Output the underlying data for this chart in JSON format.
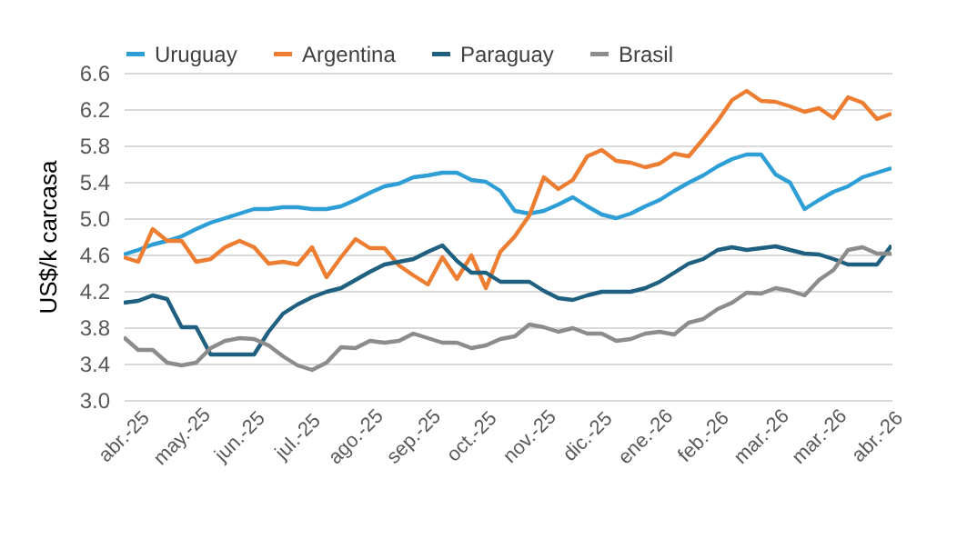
{
  "chart_data": {
    "type": "line",
    "ylabel": "US$/k carcasa",
    "categories": [
      "abr.-25",
      null,
      null,
      null,
      "may.-25",
      null,
      null,
      null,
      "jun.-25",
      null,
      null,
      null,
      "jul.-25",
      null,
      null,
      null,
      "ago.-25",
      null,
      null,
      null,
      "sep.-25",
      null,
      null,
      null,
      "oct.-25",
      null,
      null,
      null,
      "nov.-25",
      null,
      null,
      null,
      "dic.-25",
      null,
      null,
      null,
      "ene.-26",
      null,
      null,
      null,
      "feb.-26",
      null,
      null,
      null,
      "mar.-26",
      null,
      null,
      null,
      "mar.-26",
      null,
      null,
      null,
      "abr.-26",
      null
    ],
    "series": [
      {
        "name": "Uruguay",
        "color": "#2e9fd6",
        "values": [
          4.6,
          4.65,
          4.71,
          4.75,
          4.8,
          4.88,
          4.95,
          5.0,
          5.05,
          5.1,
          5.1,
          5.12,
          5.12,
          5.1,
          5.1,
          5.13,
          5.2,
          5.28,
          5.35,
          5.38,
          5.45,
          5.47,
          5.5,
          5.5,
          5.42,
          5.4,
          5.3,
          5.08,
          5.05,
          5.08,
          5.15,
          5.23,
          5.13,
          5.04,
          5.0,
          5.05,
          5.13,
          5.2,
          5.3,
          5.39,
          5.47,
          5.57,
          5.65,
          5.7,
          5.7,
          5.48,
          5.39,
          5.1,
          5.2,
          5.29,
          5.35,
          5.45,
          5.5,
          5.55
        ]
      },
      {
        "name": "Argentina",
        "color": "#ed7d31",
        "values": [
          4.57,
          4.52,
          4.88,
          4.75,
          4.75,
          4.52,
          4.55,
          4.68,
          4.75,
          4.68,
          4.5,
          4.52,
          4.49,
          4.68,
          4.35,
          4.57,
          4.77,
          4.67,
          4.67,
          4.48,
          4.37,
          4.27,
          4.57,
          4.33,
          4.59,
          4.23,
          4.63,
          4.8,
          5.03,
          5.45,
          5.32,
          5.42,
          5.68,
          5.75,
          5.63,
          5.61,
          5.56,
          5.6,
          5.71,
          5.68,
          5.87,
          6.07,
          6.3,
          6.4,
          6.29,
          6.28,
          6.23,
          6.17,
          6.21,
          6.1,
          6.33,
          6.27,
          6.09,
          6.15
        ]
      },
      {
        "name": "Paraguay",
        "color": "#1f5f7f",
        "values": [
          4.07,
          4.09,
          4.15,
          4.11,
          3.8,
          3.8,
          3.5,
          3.5,
          3.5,
          3.5,
          3.75,
          3.95,
          4.05,
          4.13,
          4.19,
          4.23,
          4.32,
          4.41,
          4.49,
          4.52,
          4.55,
          4.63,
          4.7,
          4.53,
          4.4,
          4.4,
          4.3,
          4.3,
          4.3,
          4.2,
          4.12,
          4.1,
          4.15,
          4.19,
          4.19,
          4.19,
          4.23,
          4.3,
          4.4,
          4.5,
          4.55,
          4.65,
          4.68,
          4.65,
          4.67,
          4.69,
          4.65,
          4.61,
          4.6,
          4.55,
          4.49,
          4.49,
          4.49,
          4.7
        ]
      },
      {
        "name": "Brasil",
        "color": "#8c8c8c",
        "values": [
          3.69,
          3.55,
          3.55,
          3.41,
          3.38,
          3.41,
          3.57,
          3.65,
          3.68,
          3.67,
          3.6,
          3.48,
          3.38,
          3.33,
          3.41,
          3.58,
          3.57,
          3.65,
          3.63,
          3.65,
          3.73,
          3.68,
          3.63,
          3.63,
          3.57,
          3.6,
          3.67,
          3.7,
          3.83,
          3.8,
          3.75,
          3.79,
          3.73,
          3.73,
          3.65,
          3.67,
          3.73,
          3.75,
          3.72,
          3.85,
          3.89,
          4.0,
          4.07,
          4.18,
          4.17,
          4.23,
          4.2,
          4.15,
          4.32,
          4.43,
          4.65,
          4.68,
          4.61,
          4.61
        ]
      }
    ],
    "ylim": [
      3.0,
      6.6
    ],
    "yticks": [
      {
        "value": 3.0,
        "label": "3.0"
      },
      3.4,
      3.8,
      4.2,
      4.6,
      {
        "value": 5.0,
        "label": "5.0"
      },
      5.4,
      5.8,
      6.2,
      6.6
    ],
    "grid": "y",
    "legend": "top"
  }
}
